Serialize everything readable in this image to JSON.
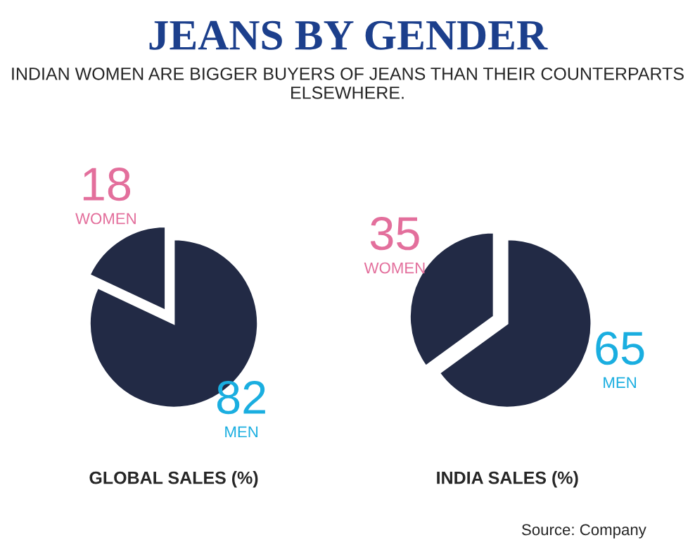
{
  "chart_data": [
    {
      "type": "pie",
      "title": "JEANS BY GENDER",
      "subtitle": "INDIAN WOMEN ARE BIGGER BUYERS OF JEANS THAN THEIR COUNTERPARTS ELSEWHERE.",
      "xlabel": "GLOBAL SALES (%)",
      "categories": [
        "WOMEN",
        "MEN"
      ],
      "values": [
        18,
        82
      ],
      "colors": [
        "#222a45",
        "#222a45"
      ],
      "data_labels": true
    },
    {
      "type": "pie",
      "xlabel": "INDIA SALES (%)",
      "categories": [
        "WOMEN",
        "MEN"
      ],
      "values": [
        35,
        65
      ],
      "colors": [
        "#222a45",
        "#222a45"
      ],
      "data_labels": true,
      "annotations": [
        "Source: Company"
      ]
    }
  ]
}
